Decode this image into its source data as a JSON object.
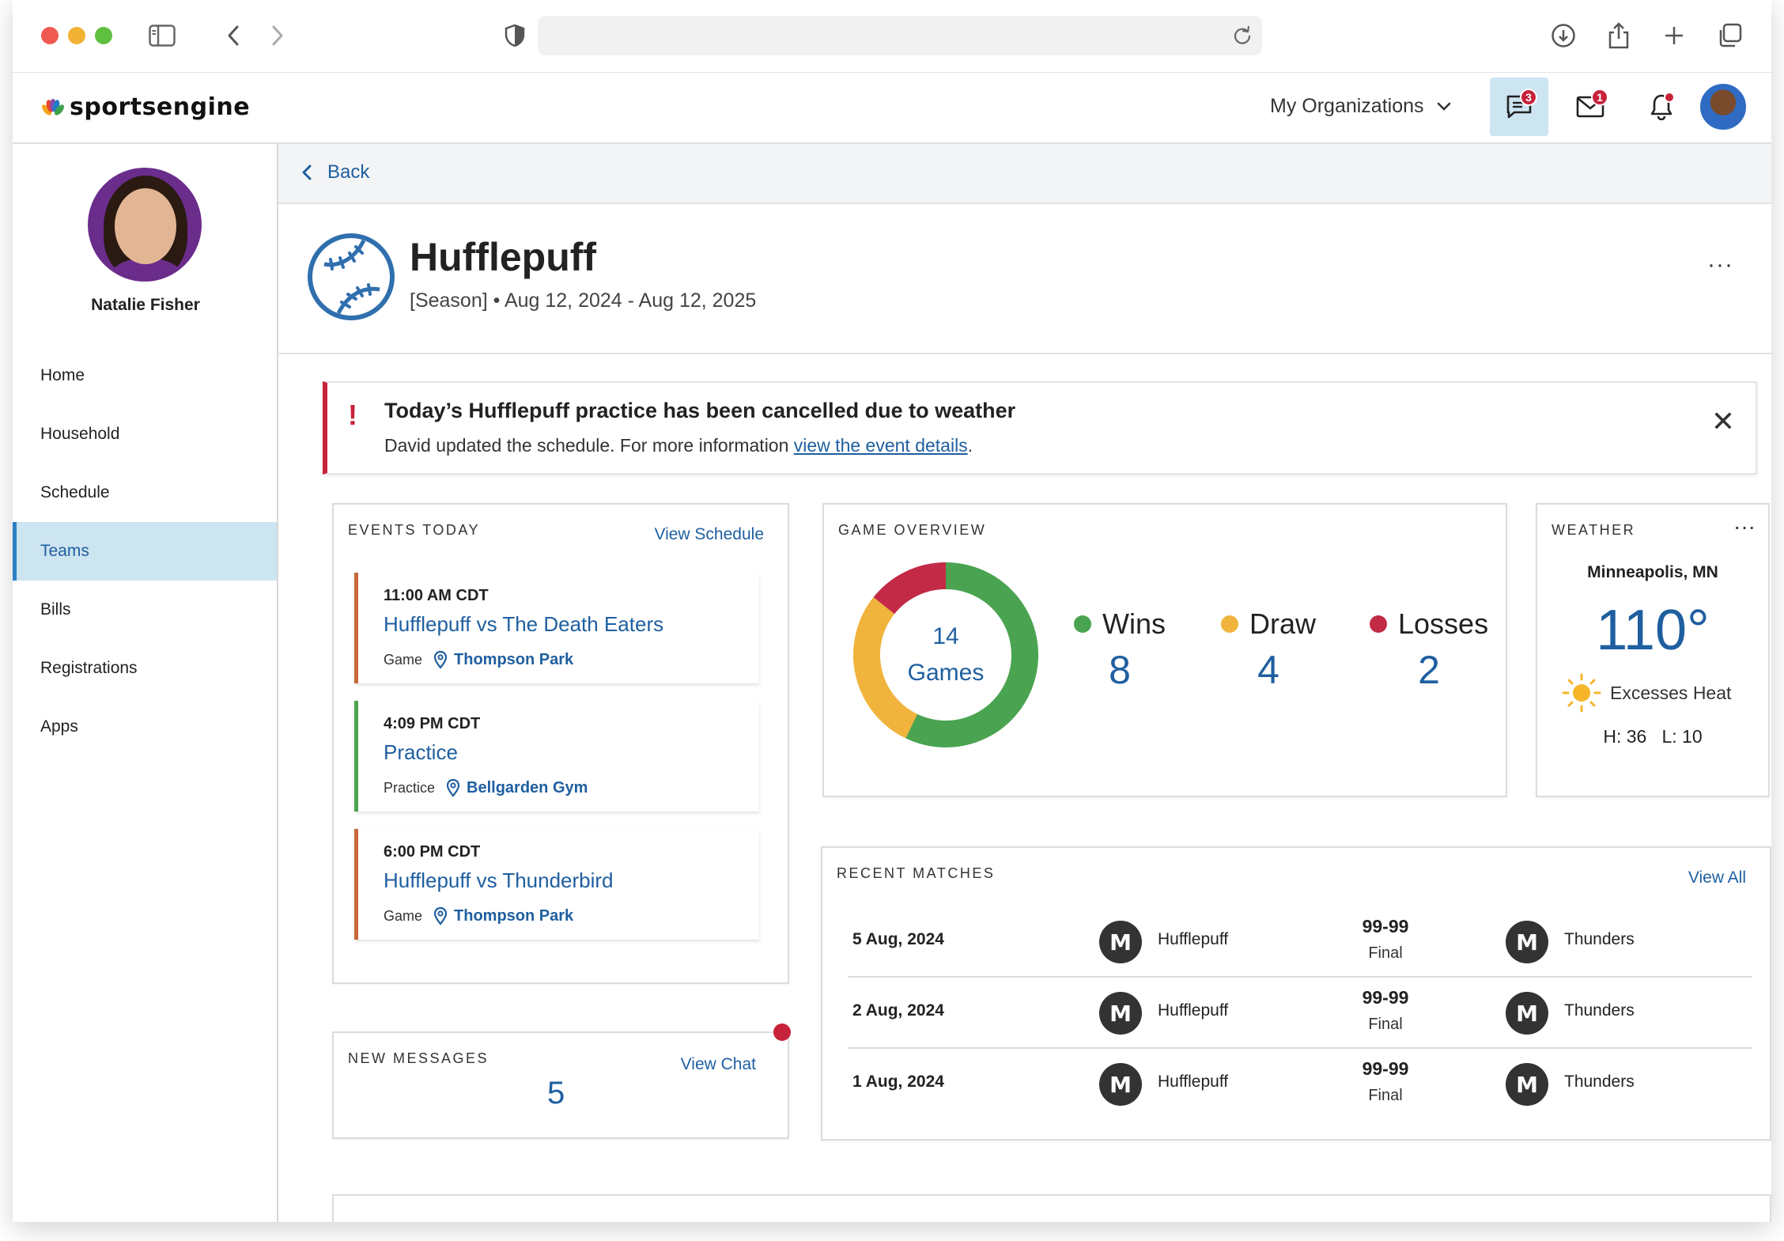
{
  "header": {
    "brand": "sportsengine",
    "my_organizations": "My Organizations",
    "chat_badge": "3",
    "mail_badge": "1"
  },
  "sidebar": {
    "user_name": "Natalie Fisher",
    "items": [
      {
        "label": "Home",
        "active": false
      },
      {
        "label": "Household",
        "active": false
      },
      {
        "label": "Schedule",
        "active": false
      },
      {
        "label": "Teams",
        "active": true
      },
      {
        "label": "Bills",
        "active": false
      },
      {
        "label": "Registrations",
        "active": false
      },
      {
        "label": "Apps",
        "active": false
      }
    ]
  },
  "main": {
    "back_label": "Back",
    "team_name": "Hufflepuff",
    "team_sub": "[Season] •  Aug 12, 2024 - Aug 12, 2025",
    "more": "···"
  },
  "alert": {
    "icon": "!",
    "title": "Today’s Hufflepuff practice has been cancelled due to weather",
    "message": "David updated the schedule. For more information ",
    "link": "view the event details",
    "suffix": ".",
    "close": "✕"
  },
  "events": {
    "label": "EVENTS TODAY",
    "link": "View Schedule",
    "items": [
      {
        "time": "11:00 AM CDT",
        "title": "Hufflepuff vs The Death Eaters",
        "type": "Game",
        "location": "Thompson Park",
        "color": "#c7673a"
      },
      {
        "time": "4:09 PM CDT",
        "title": "Practice",
        "type": "Practice",
        "location": "Bellgarden Gym",
        "color": "#4aa350"
      },
      {
        "time": "6:00 PM CDT",
        "title": "Hufflepuff vs Thunderbird",
        "type": "Game",
        "location": "Thompson Park",
        "color": "#c7673a"
      }
    ]
  },
  "messages": {
    "label": "NEW MESSAGES",
    "link": "View Chat",
    "count": "5"
  },
  "game_overview": {
    "label": "GAME OVERVIEW",
    "center_count": "14",
    "center_label": "Games",
    "stats": [
      {
        "label": "Wins",
        "value": "8",
        "color": "#4aa350"
      },
      {
        "label": "Draw",
        "value": "4",
        "color": "#f0b43c"
      },
      {
        "label": "Losses",
        "value": "2",
        "color": "#c32a45"
      }
    ]
  },
  "weather": {
    "label": "WEATHER",
    "more": "···",
    "city": "Minneapolis, MN",
    "temp": "110°",
    "condition": "Excesses Heat",
    "hilo": "H: 36   L: 10"
  },
  "recent_matches": {
    "label": "RECENT MATCHES",
    "link": "View All",
    "rows": [
      {
        "date": "5 Aug, 2024",
        "home": "Hufflepuff",
        "score": "99-99",
        "status": "Final",
        "away": "Thunders"
      },
      {
        "date": "2 Aug, 2024",
        "home": "Hufflepuff",
        "score": "99-99",
        "status": "Final",
        "away": "Thunders"
      },
      {
        "date": "1 Aug, 2024",
        "home": "Hufflepuff",
        "score": "99-99",
        "status": "Final",
        "away": "Thunders"
      }
    ],
    "logo_letter": "M"
  },
  "colors": {
    "accent": "#1f5fa0",
    "active_bg": "#cde4f1",
    "alert_red": "#c8213a"
  }
}
